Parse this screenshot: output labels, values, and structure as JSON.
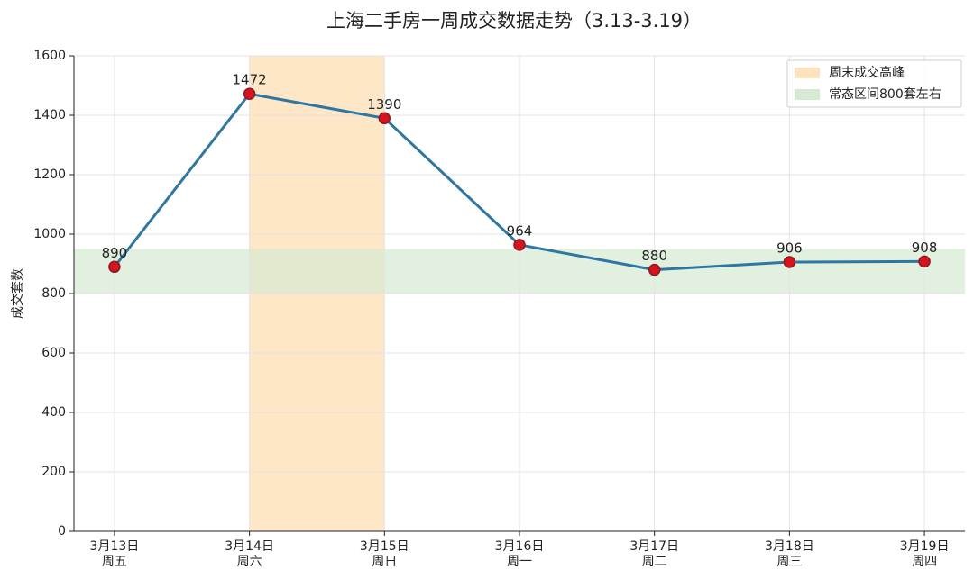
{
  "chart_data": {
    "type": "line",
    "title": "上海二手房一周成交数据走势（3.13-3.19）",
    "y_label": "成交套数",
    "categories": [
      "3月13日",
      "3月14日",
      "3月15日",
      "3月16日",
      "3月17日",
      "3月18日",
      "3月19日"
    ],
    "category_sublabels": [
      "周五",
      "周六",
      "周日",
      "周一",
      "周二",
      "周三",
      "周四"
    ],
    "values": [
      890,
      1472,
      1390,
      964,
      880,
      906,
      908
    ],
    "color": "#2f77a3",
    "marker_color": "#d7141e",
    "xlim": [
      -0.3,
      6.3
    ],
    "ylim": [
      0,
      1600
    ],
    "yticks": [
      0,
      200,
      400,
      600,
      800,
      1000,
      1200,
      1400,
      1600
    ],
    "grid": true,
    "legend": "upper right",
    "spans": [
      {
        "label": "周末成交高峰",
        "x_range": [
          1,
          2
        ],
        "color": "#fde3bd"
      },
      {
        "label": "常态区间800套左右",
        "y_range": [
          800,
          950
        ],
        "color": "#d6e9d3"
      }
    ]
  }
}
